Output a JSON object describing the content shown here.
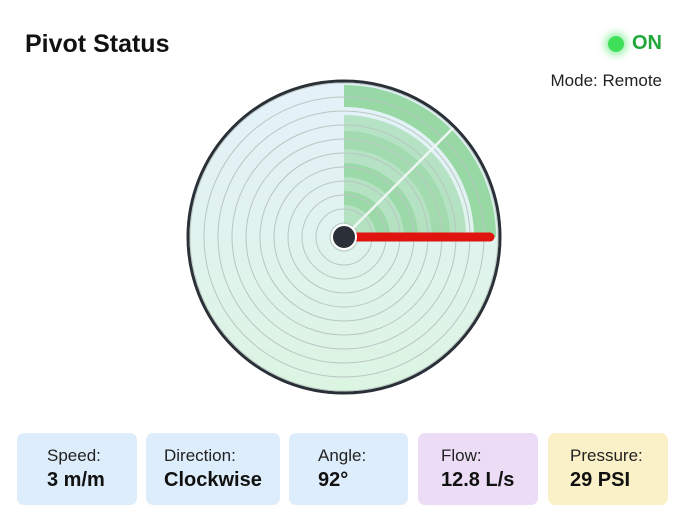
{
  "header": {
    "title": "Pivot Status",
    "status_label": "ON",
    "status_color": "#3ee05a",
    "mode": "Mode: Remote"
  },
  "pivot": {
    "angle_deg": 92,
    "arm_color": "#e0140e",
    "watered_color": "#7fcf8a"
  },
  "cards": [
    {
      "label": "Speed:",
      "value": "3 m/m",
      "color": "#deedfb"
    },
    {
      "label": "Direction:",
      "value": "Clockwise",
      "color": "#deedfb"
    },
    {
      "label": "Angle:",
      "value": "92°",
      "color": "#deedfb"
    },
    {
      "label": "Flow:",
      "value": "12.8 L/s",
      "color": "#ecdcf6"
    },
    {
      "label": "Pressure:",
      "value": "29 PSI",
      "color": "#fbf1c8"
    }
  ]
}
